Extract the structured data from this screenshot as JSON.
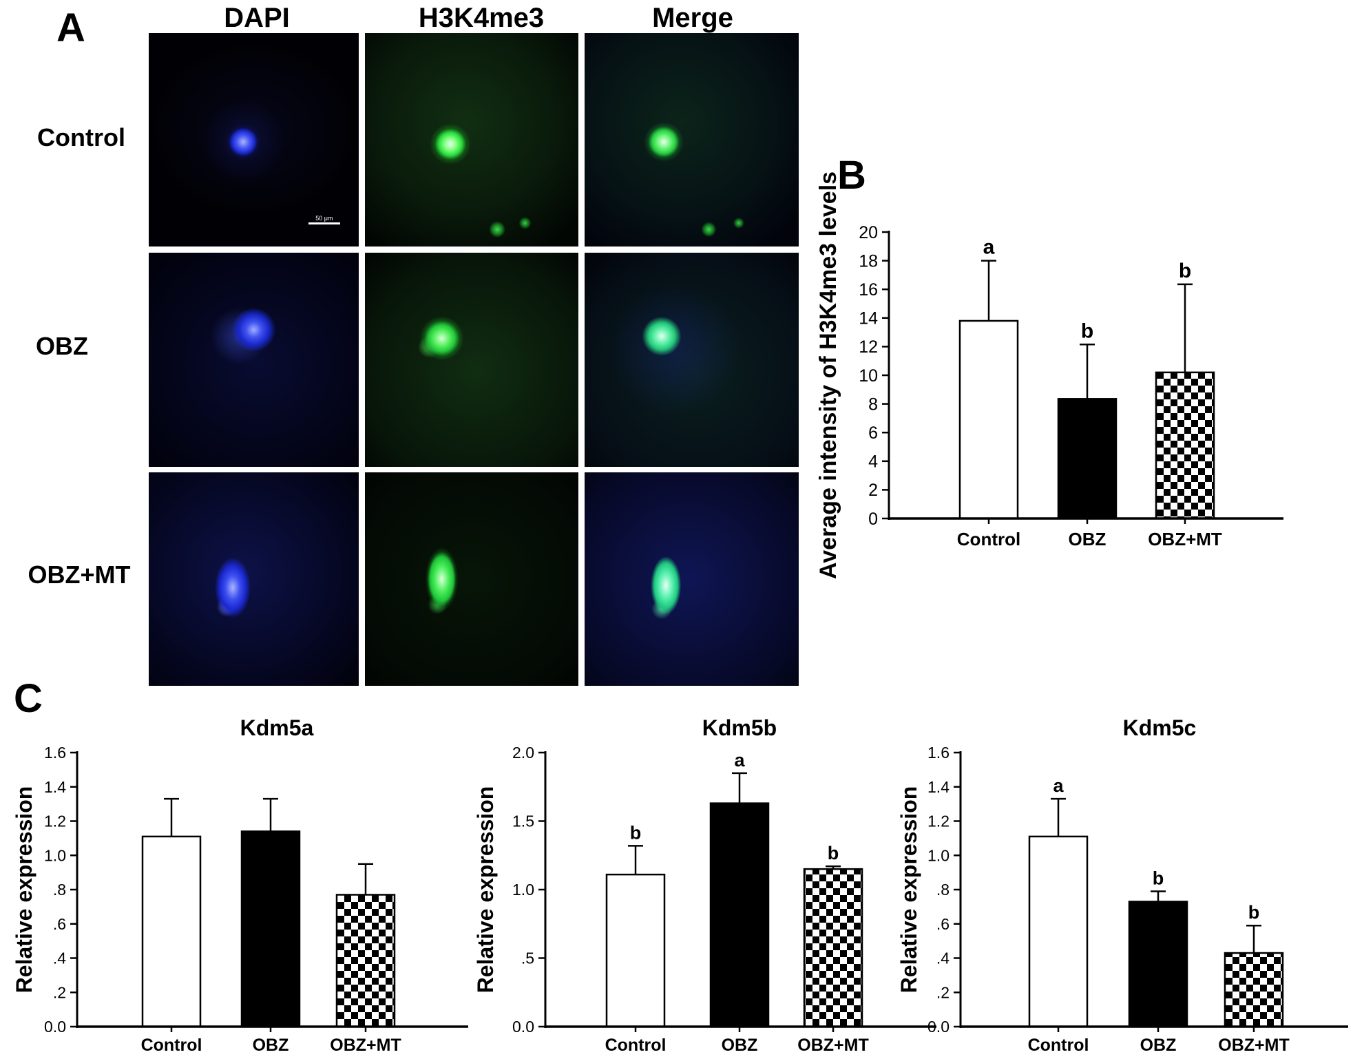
{
  "panelA": {
    "label": "A",
    "col_headers": [
      "DAPI",
      "H3K4me3",
      "Merge"
    ],
    "row_labels": [
      "Control",
      "OBZ",
      "OBZ+MT"
    ],
    "scale_bar_text": "50 μm"
  },
  "panelB_label": "B",
  "panelC_label": "C",
  "colors": {
    "bar_white": "#ffffff",
    "bar_black": "#000000",
    "axis": "#000000",
    "dapi_blue": "#3d4ff0",
    "stain_green": "#2ade3e"
  },
  "chart_data": [
    {
      "id": "chartB",
      "type": "bar",
      "title": "",
      "ylabel": "Average intensity of H3K4me3 levels",
      "xlabel": "",
      "categories": [
        "Control",
        "OBZ",
        "OBZ+MT"
      ],
      "values": [
        13.8,
        8.35,
        10.2
      ],
      "errors_up": [
        4.2,
        3.8,
        6.15
      ],
      "sig_letters": [
        "a",
        "b",
        "b"
      ],
      "bar_styles": [
        "white",
        "black",
        "checker"
      ],
      "ylim": [
        0,
        20
      ],
      "ytick_values": [
        0,
        2,
        4,
        6,
        8,
        10,
        12,
        14,
        16,
        18,
        20
      ],
      "ytick_labels": [
        "0",
        "2",
        "4",
        "6",
        "8",
        "10",
        "12",
        "14",
        "16",
        "18",
        "20"
      ],
      "grid": "off",
      "legend": "none"
    },
    {
      "id": "chartC1",
      "type": "bar",
      "title": "Kdm5a",
      "ylabel": "Relative expression",
      "xlabel": "",
      "categories": [
        "Control",
        "OBZ",
        "OBZ+MT"
      ],
      "values": [
        1.11,
        1.14,
        0.77
      ],
      "errors_up": [
        0.22,
        0.19,
        0.18
      ],
      "sig_letters": [
        "",
        "",
        ""
      ],
      "bar_styles": [
        "white",
        "black",
        "checker"
      ],
      "ylim": [
        0,
        1.6
      ],
      "ytick_values": [
        0,
        0.2,
        0.4,
        0.6,
        0.8,
        1.0,
        1.2,
        1.4,
        1.6
      ],
      "ytick_labels": [
        "0.0",
        ".2",
        ".4",
        ".6",
        ".8",
        "1.0",
        "1.2",
        "1.4",
        "1.6"
      ],
      "grid": "off",
      "legend": "none"
    },
    {
      "id": "chartC2",
      "type": "bar",
      "title": "Kdm5b",
      "ylabel": "Relative expression",
      "xlabel": "",
      "categories": [
        "Control",
        "OBZ",
        "OBZ+MT"
      ],
      "values": [
        1.11,
        1.63,
        1.15
      ],
      "errors_up": [
        0.21,
        0.22,
        0.02
      ],
      "sig_letters": [
        "b",
        "a",
        "b"
      ],
      "bar_styles": [
        "white",
        "black",
        "checker"
      ],
      "ylim": [
        0,
        2.0
      ],
      "ytick_values": [
        0,
        0.5,
        1.0,
        1.5,
        2.0
      ],
      "ytick_labels": [
        "0.0",
        ".5",
        "1.0",
        "1.5",
        "2.0"
      ],
      "grid": "off",
      "legend": "none"
    },
    {
      "id": "chartC3",
      "type": "bar",
      "title": "Kdm5c",
      "ylabel": "Relative expression",
      "xlabel": "",
      "categories": [
        "Control",
        "OBZ",
        "OBZ+MT"
      ],
      "values": [
        1.11,
        0.73,
        0.43
      ],
      "errors_up": [
        0.22,
        0.06,
        0.16
      ],
      "sig_letters": [
        "a",
        "b",
        "b"
      ],
      "bar_styles": [
        "white",
        "black",
        "checker"
      ],
      "ylim": [
        0,
        1.6
      ],
      "ytick_values": [
        0,
        0.2,
        0.4,
        0.6,
        0.8,
        1.0,
        1.2,
        1.4,
        1.6
      ],
      "ytick_labels": [
        "0.0",
        ".2",
        ".4",
        ".6",
        ".8",
        "1.0",
        "1.2",
        "1.4",
        "1.6"
      ],
      "grid": "off",
      "legend": "none"
    }
  ]
}
